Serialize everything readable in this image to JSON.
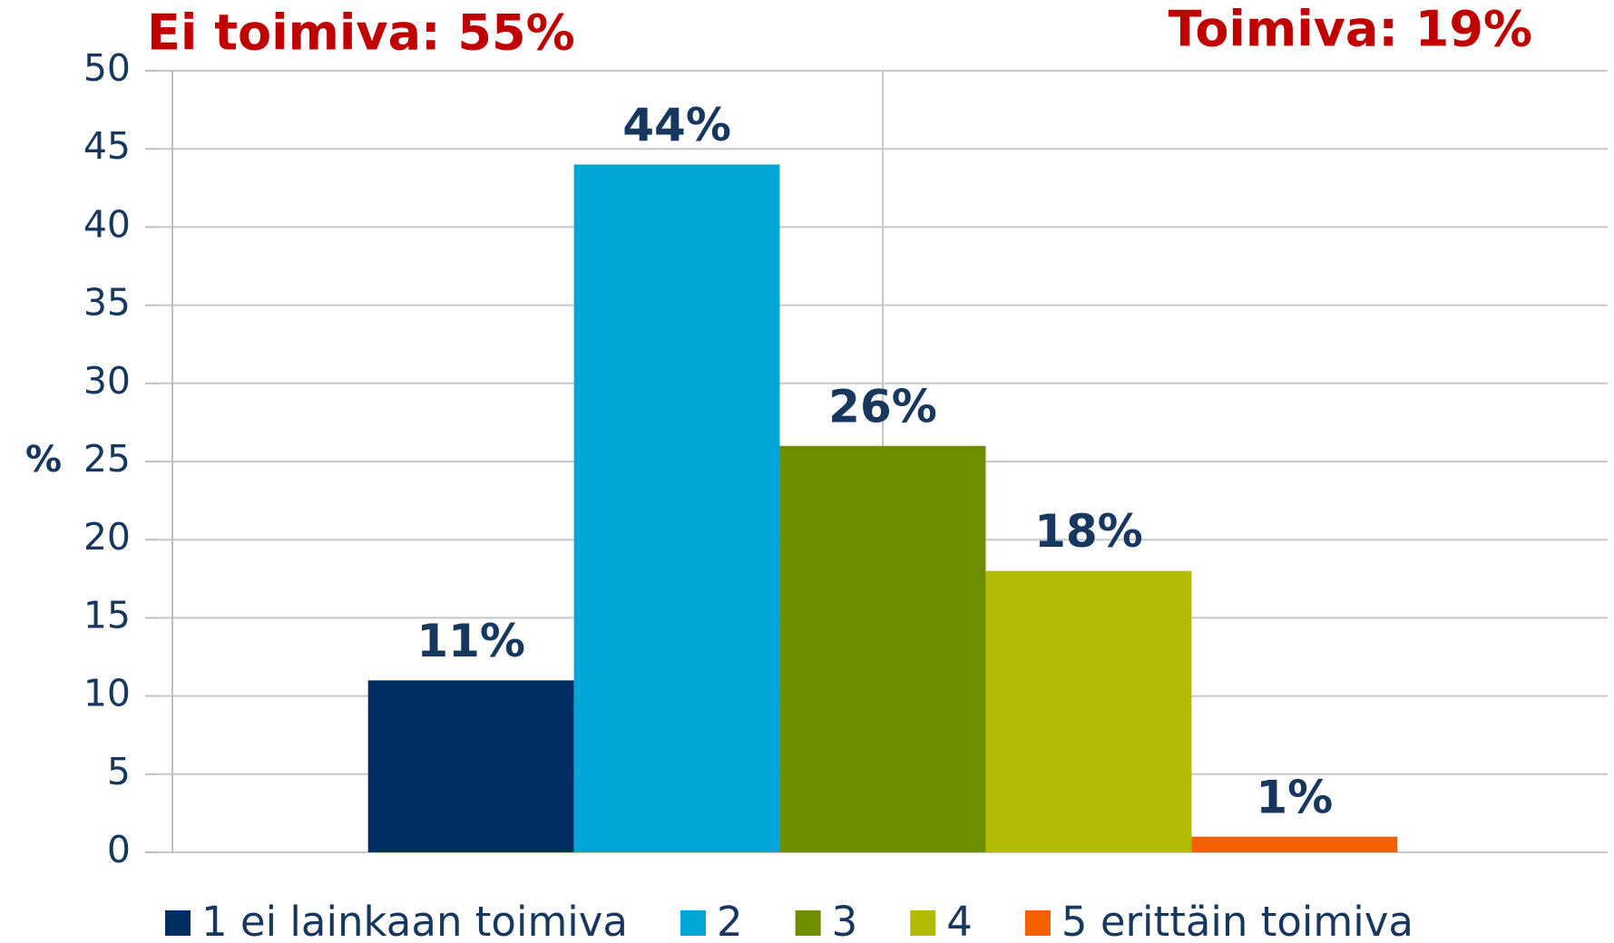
{
  "chart_data": {
    "type": "bar",
    "annotations": [
      "Ei toimiva: 55%",
      "Toimiva: 19%"
    ],
    "ylabel": "%",
    "categories": [
      null
    ],
    "series": [
      {
        "name": "1 ei lainkaan toimiva",
        "color": "#002d62",
        "values": [
          11
        ],
        "value_labels": [
          "11%"
        ]
      },
      {
        "name": "2",
        "color": "#00a6d6",
        "values": [
          44
        ],
        "value_labels": [
          "44%"
        ]
      },
      {
        "name": "3",
        "color": "#6e8e00",
        "values": [
          26
        ],
        "value_labels": [
          "26%"
        ]
      },
      {
        "name": "4",
        "color": "#b2bb05",
        "values": [
          18
        ],
        "value_labels": [
          "18%"
        ]
      },
      {
        "name": "5 erittäin toimiva",
        "color": "#f26000",
        "values": [
          1
        ],
        "value_labels": [
          "1%"
        ]
      }
    ],
    "ylim": [
      0,
      50
    ],
    "yticks": [
      0,
      5,
      10,
      15,
      20,
      25,
      30,
      35,
      40,
      45,
      50
    ],
    "grid": true,
    "legend": "bottom"
  }
}
